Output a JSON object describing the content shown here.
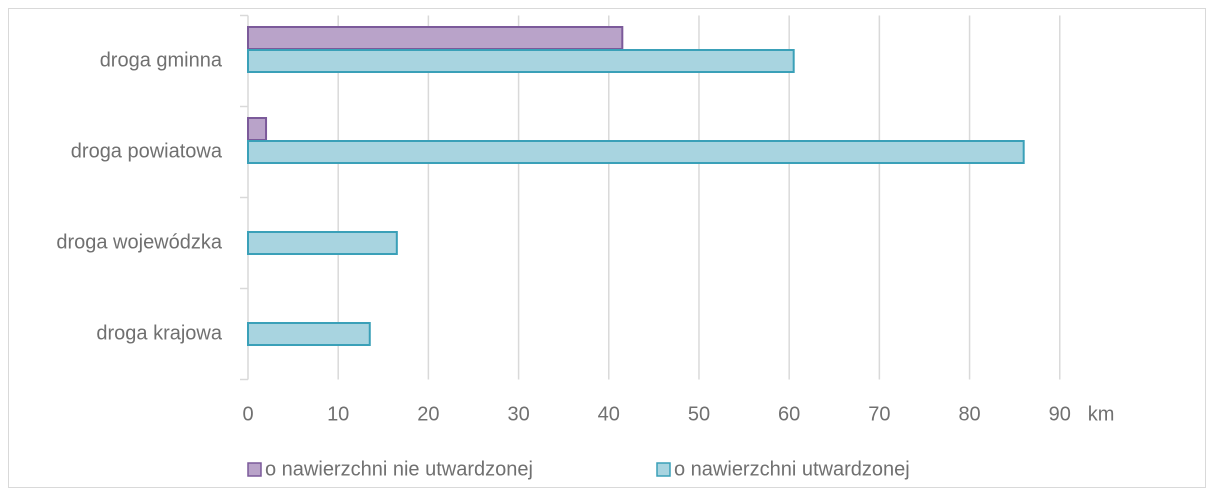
{
  "chart_data": {
    "type": "hbar",
    "categories": [
      "droga gminna",
      "droga powiatowa",
      "droga wojewódzka",
      "droga krajowa"
    ],
    "series": [
      {
        "name": "o nawierzchni nie utwardzonej",
        "color": "#b9a3c9",
        "values": [
          41.5,
          2,
          null,
          null
        ]
      },
      {
        "name": "o nawierzchni utwardzonej",
        "color": "#a8d4e0",
        "values": [
          60.5,
          86,
          16.5,
          13.5
        ]
      }
    ],
    "x_label": "km",
    "xlim": [
      0,
      102
    ],
    "xticks": [
      0,
      10,
      20,
      30,
      40,
      50,
      60,
      70,
      80,
      90
    ],
    "grid": true,
    "legend": "bottom"
  }
}
